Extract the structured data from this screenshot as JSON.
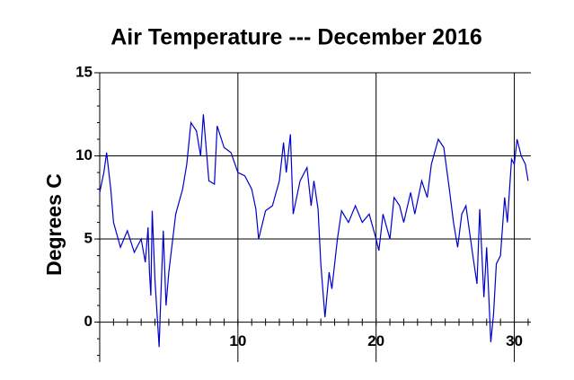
{
  "chart_data": {
    "type": "line",
    "title": "Air Temperature --- December 2016",
    "ylabel": "Degrees C",
    "x": [
      0,
      0.3,
      0.5,
      0.8,
      1,
      1.5,
      2,
      2.5,
      3,
      3.3,
      3.5,
      3.6,
      3.7,
      3.8,
      4.0,
      4.3,
      4.4,
      4.6,
      4.8,
      5.0,
      5.5,
      6.0,
      6.3,
      6.6,
      7.0,
      7.3,
      7.5,
      7.9,
      8.3,
      8.5,
      9.0,
      9.5,
      10,
      10.5,
      11,
      11.3,
      11.5,
      12,
      12.5,
      13,
      13.3,
      13.5,
      13.8,
      14,
      14.5,
      15,
      15.3,
      15.5,
      15.8,
      16,
      16.3,
      16.6,
      16.8,
      17.2,
      17.5,
      18,
      18.5,
      19,
      19.5,
      20,
      20.2,
      20.5,
      21,
      21.3,
      21.7,
      22,
      22.5,
      22.8,
      23.3,
      23.7,
      24,
      24.5,
      24.9,
      25.3,
      25.6,
      25.9,
      26.2,
      26.5,
      27,
      27.3,
      27.5,
      27.8,
      28,
      28.3,
      28.5,
      28.7,
      29,
      29.3,
      29.5,
      29.8,
      30,
      30.2,
      30.5,
      30.8,
      31
    ],
    "values": [
      7.8,
      9.0,
      10.2,
      8.0,
      6.0,
      4.5,
      5.5,
      4.2,
      5.0,
      3.6,
      5.7,
      3.0,
      1.6,
      6.7,
      2.5,
      -1.5,
      1.0,
      5.5,
      1.0,
      3.0,
      6.5,
      8.0,
      9.5,
      12.0,
      11.5,
      10.0,
      12.5,
      8.5,
      8.3,
      11.8,
      10.5,
      10.2,
      9.0,
      8.8,
      8.0,
      6.8,
      5.0,
      6.7,
      7.0,
      8.5,
      10.8,
      9.0,
      11.3,
      6.5,
      8.5,
      9.3,
      7.0,
      8.5,
      6.8,
      3.5,
      0.3,
      3.0,
      2.0,
      5.0,
      6.7,
      6.0,
      7.0,
      6.0,
      6.5,
      5.0,
      4.3,
      6.5,
      5.0,
      7.5,
      7.0,
      6.0,
      7.8,
      6.5,
      8.5,
      7.5,
      9.5,
      11.0,
      10.5,
      8.0,
      6.0,
      4.5,
      6.5,
      7.0,
      4.0,
      2.3,
      6.8,
      1.5,
      4.5,
      -1.2,
      0.5,
      3.5,
      4.0,
      7.5,
      6.0,
      9.8,
      9.5,
      11.0,
      10.0,
      9.5,
      8.5
    ],
    "color": "#0000cc",
    "xlim": [
      0,
      31.2
    ],
    "xticks": [
      10,
      20,
      30
    ],
    "ylim": [
      -2.4,
      15
    ],
    "yticks": [
      0,
      5,
      10,
      15
    ],
    "grid": true
  }
}
